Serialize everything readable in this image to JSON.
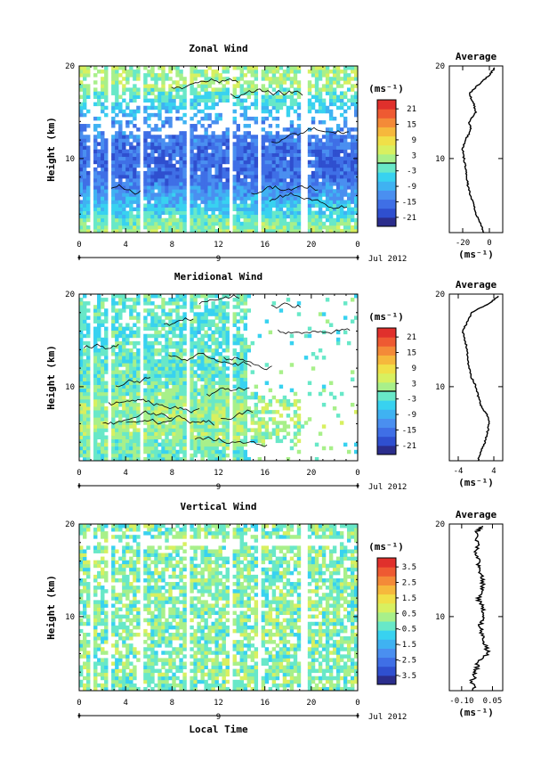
{
  "panels": [
    {
      "title": "Zonal Wind",
      "ylabel": "Height (km)",
      "ytick_labels": [
        "20",
        "10"
      ],
      "xtick_labels": [
        "0",
        "4",
        "8",
        "12",
        "16",
        "20",
        "0"
      ],
      "date_axis_labels": [
        "9",
        "Jul 2012"
      ],
      "colorbar": {
        "unit": "(ms⁻¹)",
        "tick_labels": [
          "21",
          "15",
          "9",
          "3",
          "-3",
          "-9",
          "-15",
          "-21"
        ],
        "colors": [
          "#2b2d8c",
          "#2f4fcf",
          "#3f6fe6",
          "#4a8ff0",
          "#3fb2f2",
          "#38d2f0",
          "#68e8c8",
          "#a8f08a",
          "#d8f060",
          "#f0e048",
          "#f6b83c",
          "#f48a38",
          "#ee5a32",
          "#e0302c"
        ],
        "zero_line": true
      },
      "average": {
        "title": "Average",
        "xtick_labels": [
          "-20",
          "0"
        ],
        "unit": "(ms⁻¹)"
      }
    },
    {
      "title": "Meridional Wind",
      "ylabel": "Height (km)",
      "ytick_labels": [
        "20",
        "10"
      ],
      "xtick_labels": [
        "0",
        "4",
        "8",
        "12",
        "16",
        "20",
        "0"
      ],
      "date_axis_labels": [
        "9",
        "Jul 2012"
      ],
      "colorbar": {
        "unit": "(ms⁻¹)",
        "tick_labels": [
          "21",
          "15",
          "9",
          "3",
          "-3",
          "-9",
          "-15",
          "-21"
        ],
        "colors": [
          "#2b2d8c",
          "#2f4fcf",
          "#3f6fe6",
          "#4a8ff0",
          "#3fb2f2",
          "#38d2f0",
          "#68e8c8",
          "#a8f08a",
          "#d8f060",
          "#f0e048",
          "#f6b83c",
          "#f48a38",
          "#ee5a32",
          "#e0302c"
        ],
        "zero_line": true
      },
      "average": {
        "title": "Average",
        "xtick_labels": [
          "-4",
          "4"
        ],
        "unit": "(ms⁻¹)"
      }
    },
    {
      "title": "Vertical Wind",
      "ylabel": "Height (km)",
      "ytick_labels": [
        "20",
        "10"
      ],
      "xtick_labels": [
        "0",
        "4",
        "8",
        "12",
        "16",
        "20",
        "0"
      ],
      "date_axis_labels": [
        "9",
        "Jul 2012"
      ],
      "xlabel": "Local Time",
      "colorbar": {
        "unit": "(ms⁻¹)",
        "tick_labels": [
          "3.5",
          "2.5",
          "1.5",
          "0.5",
          "-0.5",
          "-1.5",
          "-2.5",
          "-3.5"
        ],
        "colors": [
          "#2b2d8c",
          "#2f4fcf",
          "#3f6fe6",
          "#4a8ff0",
          "#3fb2f2",
          "#38d2f0",
          "#68e8c8",
          "#a8f08a",
          "#d8f060",
          "#f0e048",
          "#f6b83c",
          "#f48a38",
          "#ee5a32",
          "#e0302c"
        ],
        "zero_line": false
      },
      "average": {
        "title": "Average",
        "xtick_labels": [
          "-0.10",
          "0.05"
        ],
        "unit": "(ms⁻¹)"
      }
    }
  ],
  "chart_data": [
    {
      "type": "heatmap",
      "title": "Zonal Wind",
      "ylabel": "Height (km)",
      "xlim": [
        0,
        24
      ],
      "ylim": [
        2,
        20
      ],
      "colorbar_range": [
        -24,
        24
      ],
      "x_gaps_hours": [
        1.0,
        2.7,
        5.3,
        9.4,
        13.1,
        15.5,
        19.4
      ],
      "profile_km": [
        2,
        4,
        6,
        8,
        10,
        12,
        14,
        16,
        18
      ],
      "profile_ms": [
        3,
        -4,
        -10,
        -15,
        -16,
        -14,
        -11,
        -5,
        2
      ],
      "average_profile": {
        "title": "Average",
        "xlim": [
          -30,
          10
        ],
        "height_km": [
          2,
          3,
          4,
          5,
          6,
          7,
          8,
          9,
          10,
          11,
          12,
          13,
          14,
          15,
          16,
          17,
          18,
          19,
          19.8
        ],
        "value": [
          -4,
          -7,
          -10,
          -12,
          -14,
          -16,
          -17,
          -18,
          -19,
          -20,
          -18,
          -14,
          -15,
          -10,
          -12,
          -15,
          -8,
          0,
          4
        ]
      }
    },
    {
      "type": "heatmap",
      "title": "Meridional Wind",
      "ylabel": "Height (km)",
      "xlim": [
        0,
        24
      ],
      "ylim": [
        2,
        20
      ],
      "colorbar_range": [
        -24,
        24
      ],
      "x_gaps_hours": [
        1.0,
        2.7,
        5.3,
        9.4,
        13.1
      ],
      "profile_km": [
        2,
        4,
        6,
        8,
        10,
        12,
        14,
        16,
        18
      ],
      "profile_ms": [
        -1,
        0,
        2,
        1,
        -1,
        -2,
        -2,
        -3,
        -2
      ],
      "average_profile": {
        "title": "Average",
        "xlim": [
          -6,
          6
        ],
        "height_km": [
          2,
          3,
          4,
          5,
          6,
          7,
          8,
          9,
          10,
          11,
          12,
          13,
          14,
          15,
          16,
          17,
          18,
          19,
          19.8
        ],
        "value": [
          0.5,
          1,
          2,
          2.5,
          3,
          2.5,
          1,
          0.5,
          0,
          -1,
          -1.5,
          -2,
          -2,
          -2.5,
          -3,
          -2,
          -1,
          3,
          5
        ]
      }
    },
    {
      "type": "heatmap",
      "title": "Vertical Wind",
      "ylabel": "Height (km)",
      "xlabel": "Local Time",
      "xlim": [
        0,
        24
      ],
      "ylim": [
        2,
        20
      ],
      "colorbar_range": [
        -4,
        4
      ],
      "x_gaps_hours": [
        1.0,
        2.7,
        5.3,
        9.4,
        13.1,
        15.5,
        19.4
      ],
      "profile_km": [
        2,
        4,
        6,
        8,
        10,
        12,
        14,
        16,
        18
      ],
      "profile_ms": [
        0,
        0,
        0,
        0,
        0,
        0,
        0,
        0,
        0
      ],
      "average_profile": {
        "title": "Average",
        "xlim": [
          -0.16,
          0.1
        ],
        "height_km": [
          2,
          3,
          4,
          5,
          6,
          7,
          8,
          9,
          10,
          11,
          12,
          13,
          14,
          15,
          16,
          17,
          18,
          19,
          19.8
        ],
        "value": [
          -0.04,
          -0.05,
          -0.03,
          -0.02,
          0.03,
          0.01,
          0.0,
          -0.01,
          0.01,
          0.0,
          -0.02,
          0.0,
          0.0,
          -0.01,
          -0.02,
          -0.03,
          -0.02,
          -0.03,
          0.0
        ]
      }
    }
  ]
}
